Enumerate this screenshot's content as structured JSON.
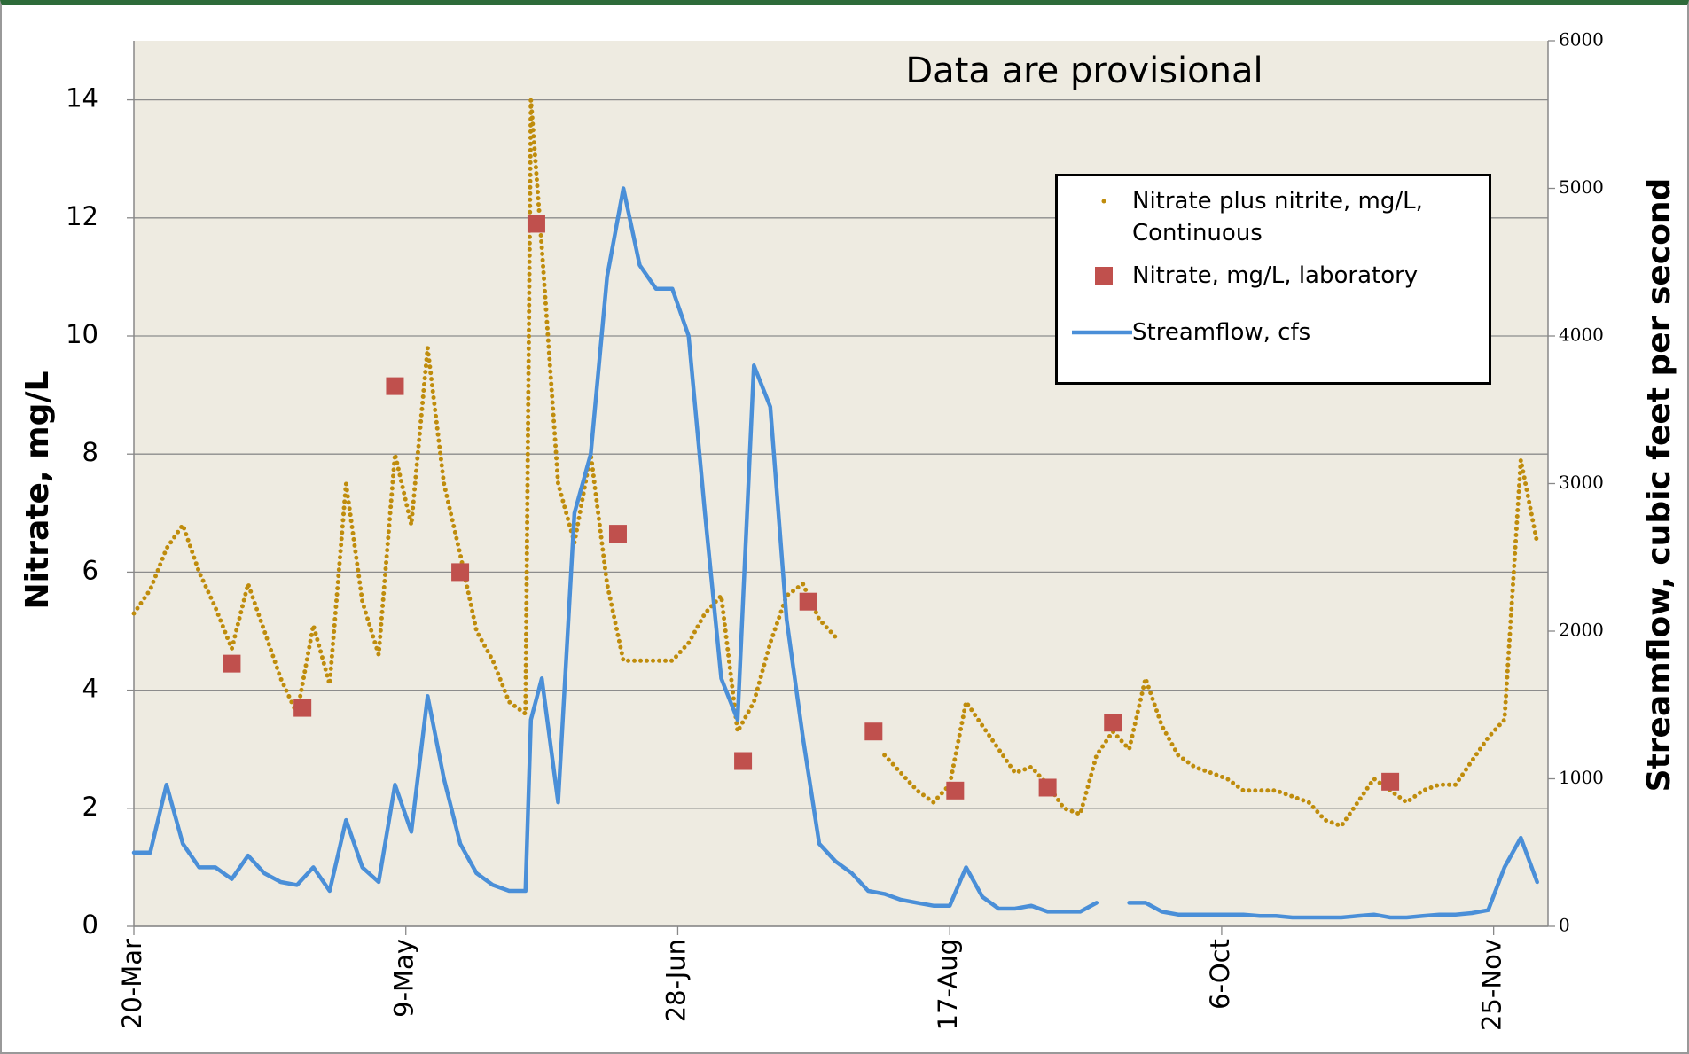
{
  "chart_data": {
    "type": "line",
    "title": "Data are provisional",
    "ylabel": "Nitrate, mg/L",
    "y2label": "Streamflow, cubic feet per second",
    "xlim": [
      "20-Mar",
      "5-Dec"
    ],
    "xticks": [
      "20-Mar",
      "9-May",
      "28-Jun",
      "17-Aug",
      "6-Oct",
      "25-Nov"
    ],
    "ylim": [
      0,
      15
    ],
    "yticks": [
      0,
      2,
      4,
      6,
      8,
      10,
      12,
      14
    ],
    "y2lim": [
      0,
      6000
    ],
    "y2ticks": [
      0,
      1000,
      2000,
      3000,
      4000,
      5000,
      6000
    ],
    "grid": true,
    "x": [
      "20-Mar",
      "23-Mar",
      "26-Mar",
      "29-Mar",
      "1-Apr",
      "4-Apr",
      "7-Apr",
      "10-Apr",
      "13-Apr",
      "16-Apr",
      "19-Apr",
      "22-Apr",
      "25-Apr",
      "28-Apr",
      "1-May",
      "4-May",
      "7-May",
      "10-May",
      "13-May",
      "16-May",
      "19-May",
      "22-May",
      "25-May",
      "28-May",
      "31-May",
      "1-Jun",
      "3-Jun",
      "6-Jun",
      "9-Jun",
      "12-Jun",
      "15-Jun",
      "18-Jun",
      "21-Jun",
      "24-Jun",
      "27-Jun",
      "30-Jun",
      "3-Jul",
      "6-Jul",
      "9-Jul",
      "12-Jul",
      "15-Jul",
      "18-Jul",
      "21-Jul",
      "24-Jul",
      "27-Jul",
      "30-Jul",
      "2-Aug",
      "5-Aug",
      "8-Aug",
      "11-Aug",
      "14-Aug",
      "17-Aug",
      "20-Aug",
      "23-Aug",
      "26-Aug",
      "29-Aug",
      "1-Sep",
      "4-Sep",
      "7-Sep",
      "10-Sep",
      "13-Sep",
      "16-Sep",
      "19-Sep",
      "22-Sep",
      "25-Sep",
      "28-Sep",
      "1-Oct",
      "4-Oct",
      "7-Oct",
      "10-Oct",
      "13-Oct",
      "16-Oct",
      "19-Oct",
      "22-Oct",
      "25-Oct",
      "28-Oct",
      "31-Oct",
      "3-Nov",
      "6-Nov",
      "9-Nov",
      "12-Nov",
      "15-Nov",
      "18-Nov",
      "21-Nov",
      "24-Nov",
      "27-Nov",
      "30-Nov",
      "3-Dec"
    ],
    "series": [
      {
        "name": "Nitrate plus nitrite, mg/L, Continuous",
        "color": "#bf8c0c",
        "linestyle": "dotted",
        "values": [
          5.3,
          5.7,
          6.4,
          6.8,
          6.0,
          5.4,
          4.7,
          5.8,
          5.0,
          4.2,
          3.6,
          5.1,
          4.1,
          7.5,
          5.5,
          4.6,
          8.0,
          6.8,
          9.8,
          7.5,
          6.3,
          5.0,
          4.5,
          3.8,
          3.6,
          14.0,
          11.5,
          7.5,
          6.5,
          8.0,
          5.8,
          4.5,
          4.5,
          4.5,
          4.5,
          4.8,
          5.3,
          5.6,
          3.3,
          3.8,
          4.8,
          5.6,
          5.8,
          5.2,
          4.9,
          null,
          null,
          2.9,
          2.6,
          2.3,
          2.1,
          2.4,
          3.8,
          3.4,
          3.0,
          2.6,
          2.7,
          2.4,
          2.0,
          1.9,
          2.9,
          3.3,
          3.0,
          4.2,
          3.4,
          2.9,
          2.7,
          2.6,
          2.5,
          2.3,
          2.3,
          2.3,
          2.2,
          2.1,
          1.8,
          1.7,
          2.1,
          2.5,
          2.3,
          2.1,
          2.3,
          2.4,
          2.4,
          2.8,
          3.2,
          3.5,
          7.9,
          6.5
        ]
      },
      {
        "name": "Nitrate, mg/L, laboratory",
        "color": "#c0504d",
        "marker": "square",
        "x": [
          "7-Apr",
          "20-Apr",
          "7-May",
          "19-May",
          "2-Jun",
          "17-Jun",
          "10-Jul",
          "22-Jul",
          "3-Aug",
          "18-Aug",
          "4-Sep",
          "16-Sep",
          "6-Nov"
        ],
        "values": [
          4.45,
          3.7,
          9.15,
          6.0,
          11.9,
          6.65,
          2.8,
          5.5,
          3.3,
          2.3,
          2.35,
          3.45,
          2.45
        ]
      },
      {
        "name": "Streamflow, cfs",
        "color": "#4a8fd8",
        "axis": "y2",
        "values": [
          500,
          500,
          960,
          560,
          400,
          400,
          320,
          480,
          360,
          300,
          280,
          400,
          240,
          720,
          400,
          300,
          960,
          640,
          1560,
          1000,
          560,
          360,
          280,
          240,
          240,
          1400,
          1680,
          840,
          2800,
          3200,
          4400,
          5000,
          4480,
          4320,
          4320,
          4000,
          2800,
          1680,
          1400,
          3800,
          3520,
          2080,
          1280,
          560,
          440,
          360,
          240,
          220,
          180,
          160,
          140,
          140,
          400,
          200,
          120,
          120,
          140,
          100,
          100,
          100,
          160,
          null,
          160,
          160,
          100,
          80,
          80,
          80,
          80,
          80,
          70,
          70,
          60,
          60,
          60,
          60,
          70,
          80,
          60,
          60,
          70,
          80,
          80,
          90,
          110,
          400,
          600,
          300
        ]
      }
    ]
  }
}
